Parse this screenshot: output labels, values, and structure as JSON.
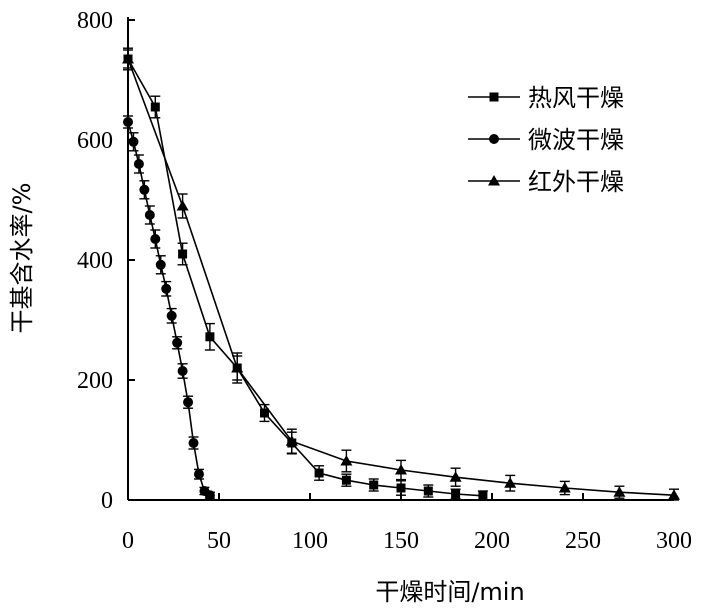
{
  "chart_data": {
    "type": "line",
    "xlabel": "干燥时间/min",
    "ylabel": "干基含水率/%",
    "xlim": [
      0,
      300
    ],
    "ylim": [
      0,
      800
    ],
    "xticks": [
      "0",
      "50",
      "100",
      "150",
      "200",
      "250",
      "300"
    ],
    "yticks": [
      "0",
      "200",
      "400",
      "600",
      "800"
    ],
    "grid": false,
    "legend_position": "top-right",
    "series": [
      {
        "name": "热风干燥",
        "marker": "square",
        "x": [
          0,
          15,
          30,
          45,
          60,
          75,
          90,
          105,
          120,
          135,
          150,
          165,
          180,
          195
        ],
        "y": [
          735,
          655,
          410,
          272,
          220,
          145,
          95,
          45,
          33,
          25,
          20,
          15,
          10,
          7
        ],
        "error": [
          18,
          18,
          18,
          22,
          20,
          14,
          18,
          12,
          10,
          10,
          12,
          10,
          8,
          8
        ]
      },
      {
        "name": "微波干燥",
        "marker": "circle",
        "x": [
          0,
          3,
          6,
          9,
          12,
          15,
          18,
          21,
          24,
          27,
          30,
          33,
          36,
          39,
          42,
          45
        ],
        "y": [
          630,
          597,
          560,
          517,
          475,
          435,
          392,
          352,
          307,
          262,
          215,
          163,
          95,
          43,
          15,
          8
        ],
        "error": [
          10,
          15,
          15,
          15,
          15,
          15,
          15,
          12,
          12,
          10,
          12,
          10,
          10,
          8,
          6,
          5
        ]
      },
      {
        "name": "红外干燥",
        "marker": "triangle",
        "x": [
          0,
          30,
          60,
          90,
          120,
          150,
          180,
          210,
          240,
          270,
          300
        ],
        "y": [
          735,
          490,
          220,
          98,
          65,
          50,
          38,
          28,
          20,
          13,
          8
        ],
        "error": [
          15,
          20,
          25,
          20,
          18,
          16,
          15,
          13,
          11,
          10,
          10
        ]
      }
    ]
  }
}
